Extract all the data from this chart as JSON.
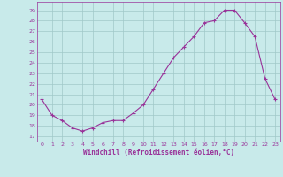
{
  "x": [
    0,
    1,
    2,
    3,
    4,
    5,
    6,
    7,
    8,
    9,
    10,
    11,
    12,
    13,
    14,
    15,
    16,
    17,
    18,
    19,
    20,
    21,
    22,
    23
  ],
  "y": [
    20.5,
    19.0,
    18.5,
    17.8,
    17.5,
    17.8,
    18.3,
    18.5,
    18.5,
    19.2,
    20.0,
    21.5,
    23.0,
    24.5,
    25.5,
    26.5,
    27.8,
    28.0,
    29.0,
    29.0,
    27.8,
    26.5,
    22.5,
    20.5
  ],
  "line_color": "#993399",
  "marker": "+",
  "marker_size": 3,
  "marker_linewidth": 0.8,
  "bg_color": "#c8eaea",
  "grid_color": "#a0c8c8",
  "xlabel": "Windchill (Refroidissement éolien,°C)",
  "ylabel_ticks": [
    17,
    18,
    19,
    20,
    21,
    22,
    23,
    24,
    25,
    26,
    27,
    28,
    29
  ],
  "xlim": [
    -0.5,
    23.5
  ],
  "ylim": [
    16.5,
    29.8
  ],
  "linewidth": 0.8
}
